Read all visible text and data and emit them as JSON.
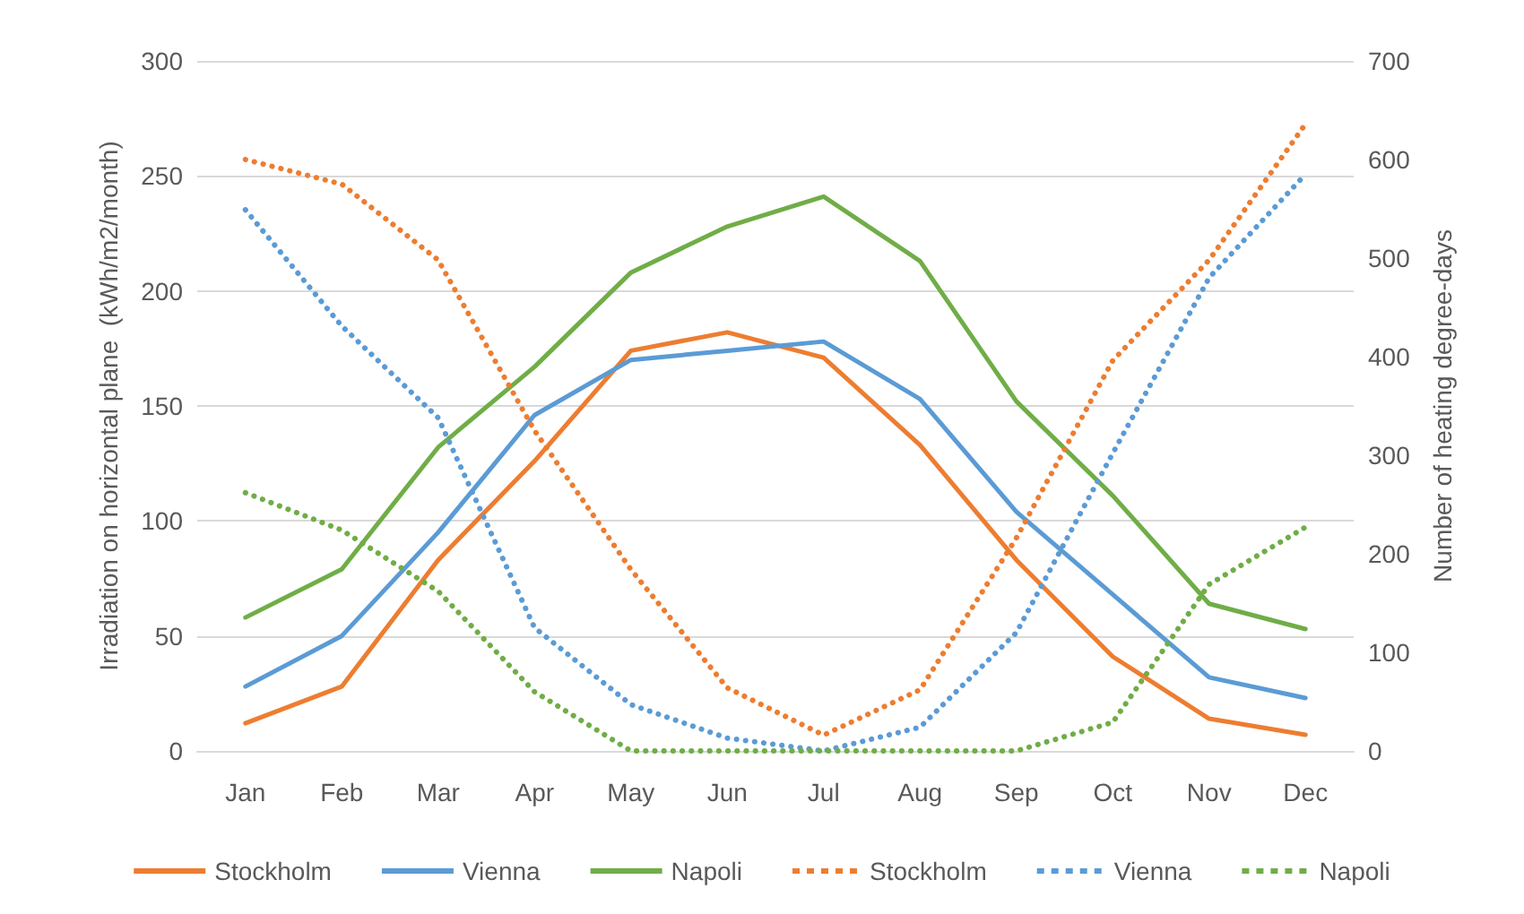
{
  "chart_data": {
    "type": "line",
    "categories": [
      "Jan",
      "Feb",
      "Mar",
      "Apr",
      "May",
      "Jun",
      "Jul",
      "Aug",
      "Sep",
      "Oct",
      "Nov",
      "Dec"
    ],
    "ylabel": "Irradiation on horizontal plane  (kWh/m2/month)",
    "y2label": "Number of heating degree-days",
    "ylim": [
      0,
      300
    ],
    "yticks": [
      0,
      50,
      100,
      150,
      200,
      250,
      300
    ],
    "y2lim": [
      0,
      700
    ],
    "y2ticks": [
      0,
      100,
      200,
      300,
      400,
      500,
      600,
      700
    ],
    "grid": "y",
    "legend": "bottom",
    "marker": "none",
    "line_style": "solid",
    "series": [
      {
        "name": "Stockholm",
        "color": "#ed7d31",
        "values": [
          12,
          28,
          83,
          126,
          174,
          182,
          171,
          133,
          83,
          41,
          14,
          7
        ]
      },
      {
        "name": "Vienna",
        "color": "#5b9bd5",
        "values": [
          28,
          50,
          95,
          146,
          170,
          174,
          178,
          153,
          104,
          68,
          32,
          23
        ]
      },
      {
        "name": "Napoli",
        "color": "#70ad47",
        "values": [
          58,
          79,
          132,
          167,
          208,
          228,
          241,
          213,
          152,
          111,
          64,
          53
        ]
      },
      {
        "name": "Stockholm",
        "color": "#ed7d31",
        "axis": "y2",
        "line_style": "dotted",
        "values": [
          600,
          575,
          498,
          325,
          184,
          64,
          16,
          62,
          216,
          396,
          498,
          636
        ]
      },
      {
        "name": "Vienna",
        "color": "#5b9bd5",
        "axis": "y2",
        "line_style": "dotted",
        "values": [
          549,
          431,
          338,
          125,
          47,
          13,
          0,
          24,
          120,
          302,
          480,
          585
        ]
      },
      {
        "name": "Napoli",
        "color": "#70ad47",
        "axis": "y2",
        "line_style": "dotted",
        "values": [
          262,
          224,
          162,
          60,
          0,
          0,
          0,
          0,
          0,
          29,
          169,
          227
        ]
      }
    ]
  }
}
